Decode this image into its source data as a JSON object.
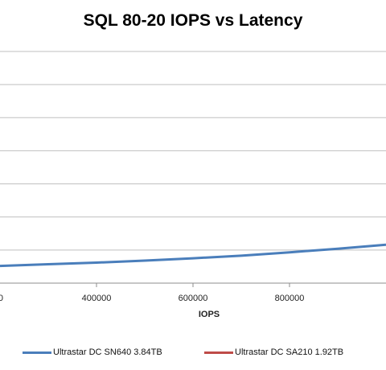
{
  "chart_data": {
    "type": "line",
    "title": "SQL 80-20 IOPS vs Latency",
    "xlabel": "IOPS",
    "ylabel": "",
    "xlim": [
      200000,
      1000000
    ],
    "ylim": [
      0,
      7
    ],
    "x_ticks": [
      400000,
      600000,
      800000
    ],
    "x_tick_labels": [
      "400000",
      "600000",
      "800000"
    ],
    "partial_tick_label": "0",
    "grid": true,
    "legend_position": "bottom",
    "series": [
      {
        "name": "Ultrastar DC SN640 3.84TB",
        "color": "#4A7EBB",
        "x": [
          200000,
          300000,
          400000,
          500000,
          600000,
          700000,
          800000,
          900000,
          1000000
        ],
        "y": [
          0.52,
          0.57,
          0.62,
          0.68,
          0.75,
          0.83,
          0.93,
          1.04,
          1.16
        ]
      },
      {
        "name": "Ultrastar DC SA210 1.92TB",
        "color": "#BE4B48",
        "x": [],
        "y": []
      }
    ]
  }
}
